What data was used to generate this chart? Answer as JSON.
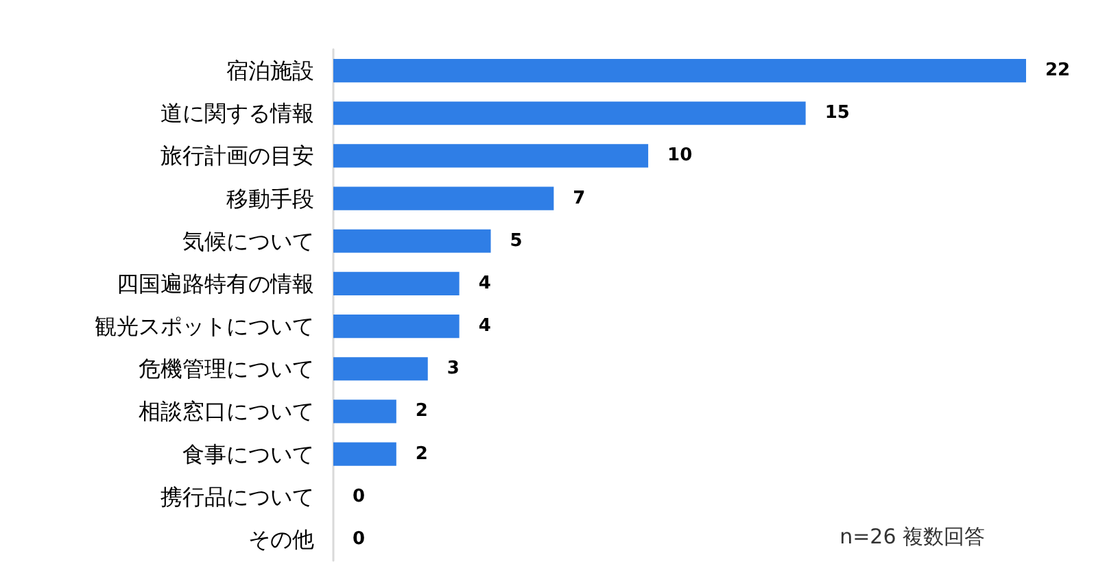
{
  "chart_data": {
    "type": "bar",
    "orientation": "horizontal",
    "categories": [
      "宿泊施設",
      "道に関する情報",
      "旅行計画の目安",
      "移動手段",
      "気候について",
      "四国遍路特有の情報",
      "観光スポットについて",
      "危機管理について",
      "相談窓口について",
      "食事について",
      "携行品について",
      "その他"
    ],
    "values": [
      22,
      15,
      10,
      7,
      5,
      4,
      4,
      3,
      2,
      2,
      0,
      0
    ],
    "color": "#2f7ee6",
    "data_labels": true,
    "annotations": [
      "n=26 複数回答"
    ]
  }
}
